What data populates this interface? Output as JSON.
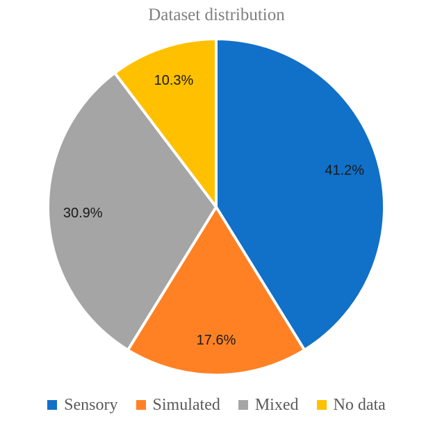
{
  "chart_data": {
    "type": "pie",
    "title": "Dataset distribution",
    "categories": [
      "Sensory",
      "Simulated",
      "Mixed",
      "No data"
    ],
    "values": [
      41.2,
      17.6,
      30.9,
      10.3
    ],
    "labels": [
      "41.2%",
      "17.6%",
      "30.9%",
      "10.3%"
    ],
    "colors": [
      "#1170C8",
      "#FF8124",
      "#A5A5A5",
      "#FFC000"
    ],
    "legend_position": "bottom"
  }
}
